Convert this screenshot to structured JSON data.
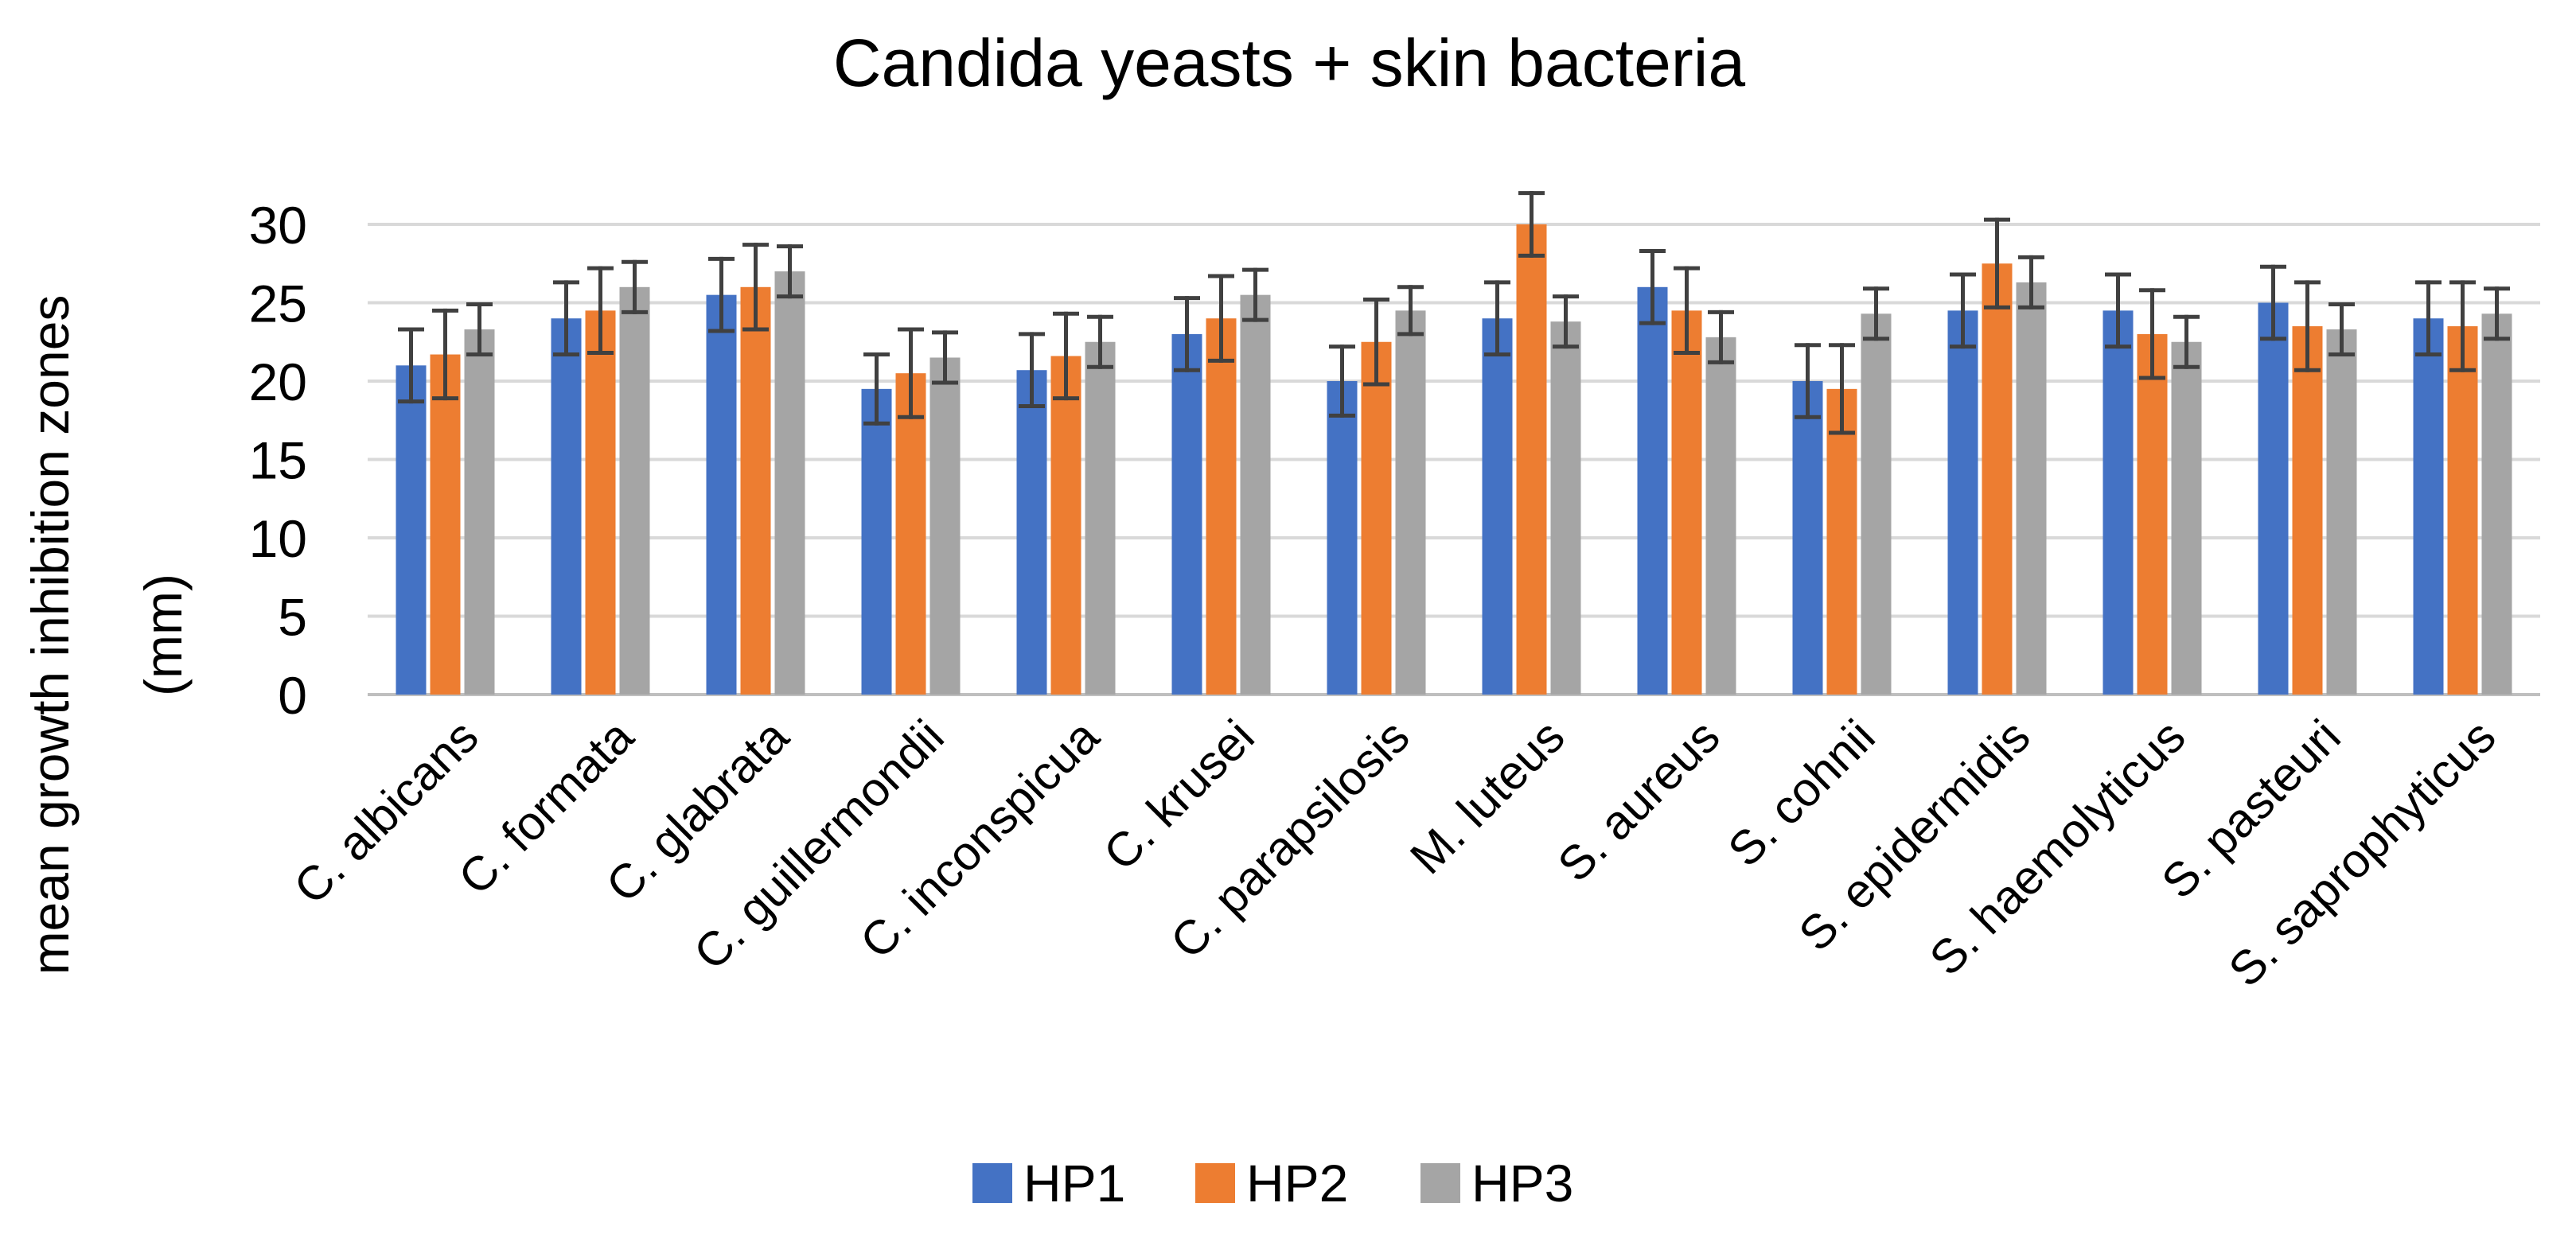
{
  "chart_data": {
    "type": "bar",
    "title": "Candida yeasts + skin bacteria",
    "xlabel": "",
    "ylabel": "mean growth inhibition zones (mm)",
    "ylabel_lines": [
      "mean growth inhibition zones",
      "(mm)"
    ],
    "ylim": [
      0,
      30
    ],
    "yticks": [
      0,
      5,
      10,
      15,
      20,
      25,
      30
    ],
    "grid": true,
    "legend_position": "bottom",
    "categories": [
      "C. albicans",
      "C. formata",
      "C. glabrata",
      "C. guillermondii",
      "C. inconspicua",
      "C. krusei",
      "C. parapsilosis",
      "M. luteus",
      "S. aureus",
      "S. cohnii",
      "S. epidermidis",
      "S. haemolyticus",
      "S. pasteuri",
      "S. saprophyticus"
    ],
    "series": [
      {
        "name": "HP1",
        "color": "#4472C4",
        "values": [
          21.0,
          24.0,
          25.5,
          19.5,
          20.7,
          23.0,
          20.0,
          24.0,
          26.0,
          20.0,
          24.5,
          24.5,
          25.0,
          24.0
        ],
        "errors": [
          2.3,
          2.3,
          2.3,
          2.2,
          2.3,
          2.3,
          2.2,
          2.3,
          2.3,
          2.3,
          2.3,
          2.3,
          2.3,
          2.3
        ]
      },
      {
        "name": "HP2",
        "color": "#ED7D31",
        "values": [
          21.7,
          24.5,
          26.0,
          20.5,
          21.6,
          24.0,
          22.5,
          30.0,
          24.5,
          19.5,
          27.5,
          23.0,
          23.5,
          23.5
        ],
        "errors": [
          2.8,
          2.7,
          2.7,
          2.8,
          2.7,
          2.7,
          2.7,
          2.0,
          2.7,
          2.8,
          2.8,
          2.8,
          2.8,
          2.8
        ]
      },
      {
        "name": "HP3",
        "color": "#A5A5A5",
        "values": [
          23.3,
          26.0,
          27.0,
          21.5,
          22.5,
          25.5,
          24.5,
          23.8,
          22.8,
          24.3,
          26.3,
          22.5,
          23.3,
          24.3
        ],
        "errors": [
          1.6,
          1.6,
          1.6,
          1.6,
          1.6,
          1.6,
          1.5,
          1.6,
          1.6,
          1.6,
          1.6,
          1.6,
          1.6,
          1.6
        ]
      }
    ]
  }
}
